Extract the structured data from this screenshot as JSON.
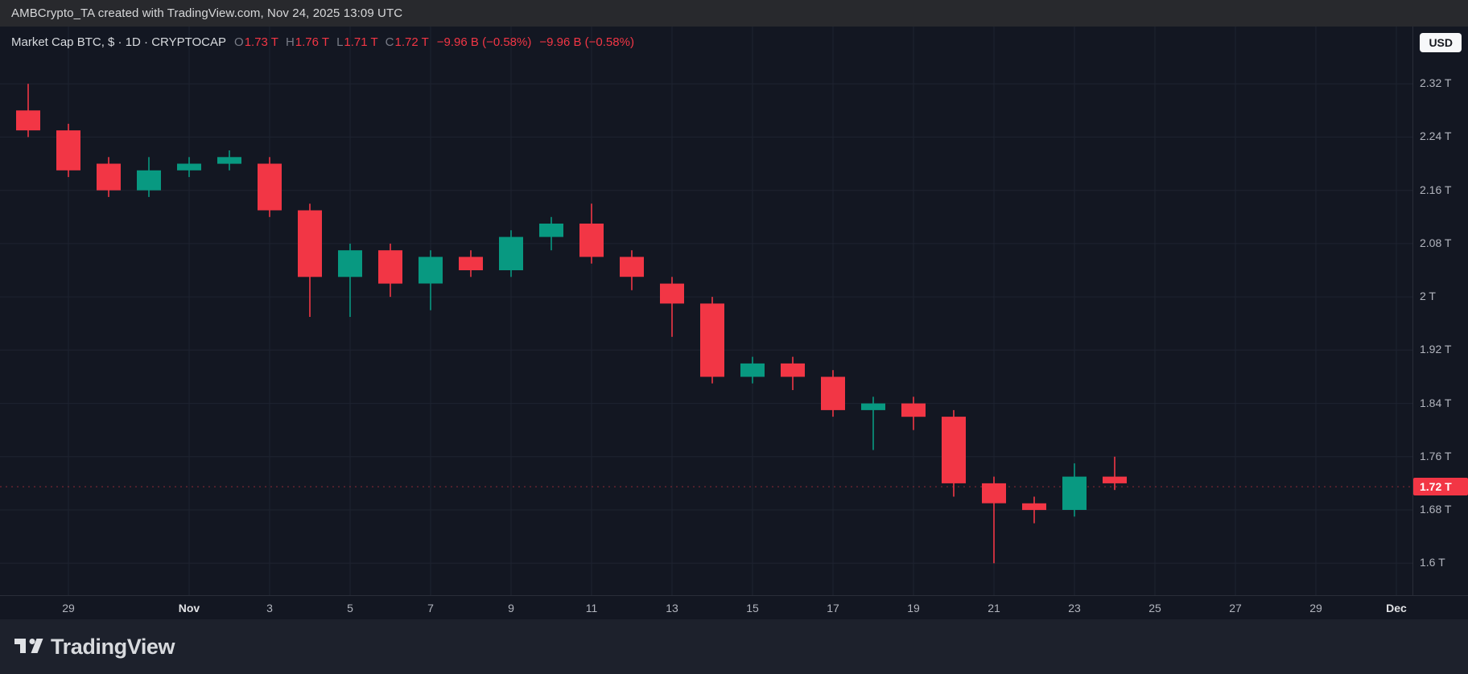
{
  "topbar": {
    "attribution": "AMBCrypto_TA created with TradingView.com, Nov 24, 2025 13:09 UTC"
  },
  "header": {
    "symbol_title": "Market Cap BTC, $ · 1D · CRYPTOCAP",
    "ohlc": {
      "o_label": "O",
      "o_value": "1.73 T",
      "h_label": "H",
      "h_value": "1.76 T",
      "l_label": "L",
      "l_value": "1.71 T",
      "c_label": "C",
      "c_value": "1.72 T"
    },
    "change_abs": "−9.96 B (−0.58%)",
    "change_dup": "−9.96 B (−0.58%)",
    "currency_button": "USD"
  },
  "footer": {
    "brand": "TradingView"
  },
  "chart_data": {
    "type": "candlestick",
    "title": "Market Cap BTC, 1D, CRYPTOCAP",
    "unit": "USD trillions",
    "y_domain": [
      1.552,
      2.406
    ],
    "grid": true,
    "y_ticks": [
      {
        "value": 2.32,
        "label": "2.32 T"
      },
      {
        "value": 2.24,
        "label": "2.24 T"
      },
      {
        "value": 2.16,
        "label": "2.16 T"
      },
      {
        "value": 2.08,
        "label": "2.08 T"
      },
      {
        "value": 2.0,
        "label": "2 T"
      },
      {
        "value": 1.92,
        "label": "1.92 T"
      },
      {
        "value": 1.84,
        "label": "1.84 T"
      },
      {
        "value": 1.76,
        "label": "1.76 T"
      },
      {
        "value": 1.68,
        "label": "1.68 T"
      },
      {
        "value": 1.6,
        "label": "1.6 T"
      }
    ],
    "x_ticks": [
      {
        "slot": 1,
        "label": "29",
        "major": false
      },
      {
        "slot": 4,
        "label": "Nov",
        "major": true
      },
      {
        "slot": 6,
        "label": "3",
        "major": false
      },
      {
        "slot": 8,
        "label": "5",
        "major": false
      },
      {
        "slot": 10,
        "label": "7",
        "major": false
      },
      {
        "slot": 12,
        "label": "9",
        "major": false
      },
      {
        "slot": 14,
        "label": "11",
        "major": false
      },
      {
        "slot": 16,
        "label": "13",
        "major": false
      },
      {
        "slot": 18,
        "label": "15",
        "major": false
      },
      {
        "slot": 20,
        "label": "17",
        "major": false
      },
      {
        "slot": 22,
        "label": "19",
        "major": false
      },
      {
        "slot": 24,
        "label": "21",
        "major": false
      },
      {
        "slot": 26,
        "label": "23",
        "major": false
      },
      {
        "slot": 28,
        "label": "25",
        "major": false
      },
      {
        "slot": 30,
        "label": "27",
        "major": false
      },
      {
        "slot": 32,
        "label": "29",
        "major": false
      },
      {
        "slot": 34,
        "label": "Dec",
        "major": true
      }
    ],
    "last_price": {
      "value": 1.715,
      "label": "1.72 T",
      "direction": "down"
    },
    "colors": {
      "up": "#089981",
      "down": "#f23645"
    },
    "candles": [
      {
        "date": "Oct 28",
        "o": 2.28,
        "h": 2.32,
        "l": 2.24,
        "c": 2.25
      },
      {
        "date": "Oct 29",
        "o": 2.25,
        "h": 2.26,
        "l": 2.18,
        "c": 2.19
      },
      {
        "date": "Oct 30",
        "o": 2.2,
        "h": 2.21,
        "l": 2.15,
        "c": 2.16
      },
      {
        "date": "Oct 31",
        "o": 2.16,
        "h": 2.21,
        "l": 2.15,
        "c": 2.19
      },
      {
        "date": "Nov 1",
        "o": 2.19,
        "h": 2.21,
        "l": 2.18,
        "c": 2.2
      },
      {
        "date": "Nov 2",
        "o": 2.2,
        "h": 2.22,
        "l": 2.19,
        "c": 2.21
      },
      {
        "date": "Nov 3",
        "o": 2.2,
        "h": 2.21,
        "l": 2.12,
        "c": 2.13
      },
      {
        "date": "Nov 4",
        "o": 2.13,
        "h": 2.14,
        "l": 1.97,
        "c": 2.03
      },
      {
        "date": "Nov 5",
        "o": 2.03,
        "h": 2.08,
        "l": 1.97,
        "c": 2.07
      },
      {
        "date": "Nov 6",
        "o": 2.07,
        "h": 2.08,
        "l": 2.0,
        "c": 2.02
      },
      {
        "date": "Nov 7",
        "o": 2.02,
        "h": 2.07,
        "l": 1.98,
        "c": 2.06
      },
      {
        "date": "Nov 8",
        "o": 2.06,
        "h": 2.07,
        "l": 2.03,
        "c": 2.04
      },
      {
        "date": "Nov 9",
        "o": 2.04,
        "h": 2.1,
        "l": 2.03,
        "c": 2.09
      },
      {
        "date": "Nov 10",
        "o": 2.09,
        "h": 2.12,
        "l": 2.07,
        "c": 2.11
      },
      {
        "date": "Nov 11",
        "o": 2.11,
        "h": 2.14,
        "l": 2.05,
        "c": 2.06
      },
      {
        "date": "Nov 12",
        "o": 2.06,
        "h": 2.07,
        "l": 2.01,
        "c": 2.03
      },
      {
        "date": "Nov 13",
        "o": 2.02,
        "h": 2.03,
        "l": 1.94,
        "c": 1.99
      },
      {
        "date": "Nov 14",
        "o": 1.99,
        "h": 2.0,
        "l": 1.87,
        "c": 1.88
      },
      {
        "date": "Nov 15",
        "o": 1.88,
        "h": 1.91,
        "l": 1.87,
        "c": 1.9
      },
      {
        "date": "Nov 16",
        "o": 1.9,
        "h": 1.91,
        "l": 1.86,
        "c": 1.88
      },
      {
        "date": "Nov 17",
        "o": 1.88,
        "h": 1.89,
        "l": 1.82,
        "c": 1.83
      },
      {
        "date": "Nov 18",
        "o": 1.83,
        "h": 1.85,
        "l": 1.77,
        "c": 1.84
      },
      {
        "date": "Nov 19",
        "o": 1.84,
        "h": 1.85,
        "l": 1.8,
        "c": 1.82
      },
      {
        "date": "Nov 20",
        "o": 1.82,
        "h": 1.83,
        "l": 1.7,
        "c": 1.72
      },
      {
        "date": "Nov 21",
        "o": 1.72,
        "h": 1.73,
        "l": 1.6,
        "c": 1.69
      },
      {
        "date": "Nov 22",
        "o": 1.69,
        "h": 1.7,
        "l": 1.66,
        "c": 1.68
      },
      {
        "date": "Nov 23",
        "o": 1.68,
        "h": 1.75,
        "l": 1.67,
        "c": 1.73
      },
      {
        "date": "Nov 24",
        "o": 1.73,
        "h": 1.76,
        "l": 1.71,
        "c": 1.72
      }
    ]
  }
}
